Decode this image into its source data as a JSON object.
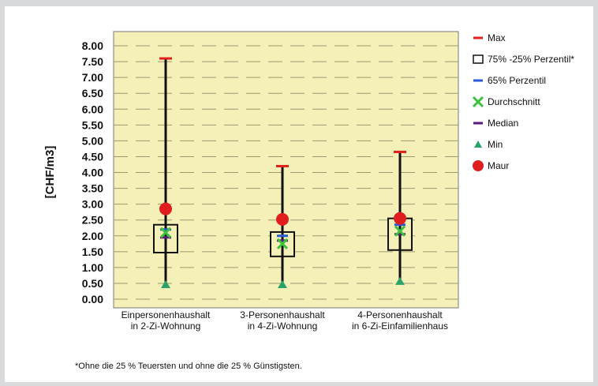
{
  "chart_data": {
    "type": "box",
    "ylabel": "[CHF/m3]",
    "ylim": [
      0,
      8
    ],
    "yticks": [
      "0.00",
      "0.50",
      "1.00",
      "1.50",
      "2.00",
      "2.50",
      "3.00",
      "3.50",
      "4.00",
      "4.50",
      "5.00",
      "5.50",
      "6.00",
      "6.50",
      "7.00",
      "7.50",
      "8.00"
    ],
    "grid": "horizontal dashed",
    "legend_position": "right",
    "categories": [
      [
        "Einpersonenhaushalt",
        "in 2-Zi-Wohnung"
      ],
      [
        "3-Personenhaushalt",
        "in 4-Zi-Wohnung"
      ],
      [
        "4-Personenhaushalt",
        "in 6-Zi-Einfamilienhaus"
      ]
    ],
    "series": [
      {
        "name": "Max",
        "values": [
          7.6,
          4.2,
          4.65
        ]
      },
      {
        "name": "75% -25% Perzentil*",
        "values": [
          [
            1.47,
            2.35
          ],
          [
            1.35,
            2.12
          ],
          [
            1.55,
            2.55
          ]
        ]
      },
      {
        "name": "65% Perzentil",
        "values": [
          2.2,
          2.0,
          2.35
        ]
      },
      {
        "name": "Durchschnitt",
        "values": [
          2.1,
          1.75,
          2.15
        ]
      },
      {
        "name": "Median",
        "values": [
          1.95,
          1.85,
          2.05
        ]
      },
      {
        "name": "Min",
        "values": [
          0.45,
          0.45,
          0.55
        ]
      },
      {
        "name": "Maur",
        "values": [
          2.85,
          2.52,
          2.55
        ]
      }
    ],
    "colors": {
      "plot_bg": "#f5f0b8",
      "max": "#e0201a",
      "box": "#111111",
      "p65": "#2a5bd7",
      "avg": "#3cc23c",
      "median": "#5a1a7a",
      "min": "#2aa36a",
      "maur": "#e01e1e"
    }
  },
  "footnote": "*Ohne die 25 % Teuersten und ohne die 25 % Günstigsten."
}
